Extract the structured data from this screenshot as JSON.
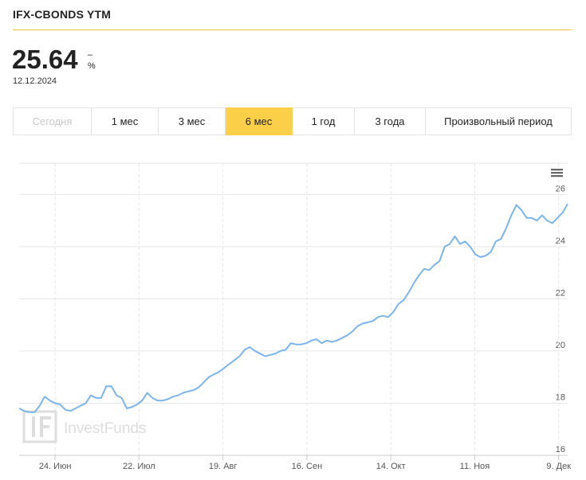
{
  "header": {
    "title": "IFX-CBONDS YTM",
    "value": "25.64",
    "change": "–",
    "unit": "%",
    "date": "12.12.2024"
  },
  "tabs": [
    {
      "label": "Сегодня",
      "state": "disabled"
    },
    {
      "label": "1 мес",
      "state": "normal"
    },
    {
      "label": "3 мес",
      "state": "normal"
    },
    {
      "label": "6 мес",
      "state": "active"
    },
    {
      "label": "1 год",
      "state": "normal"
    },
    {
      "label": "3 года",
      "state": "normal"
    },
    {
      "label": "Произвольный период",
      "state": "normal"
    }
  ],
  "colors": {
    "accent": "#fccf48",
    "title_rule": "#f5c242",
    "series_line": "#7cb5ec"
  },
  "watermark": "InvestFunds",
  "menu_icon": "hamburger-menu-icon",
  "chart_data": {
    "type": "line",
    "series": [
      {
        "values": [
          17.8,
          17.7,
          17.65,
          17.65,
          17.9,
          18.25,
          18.1,
          18.0,
          17.95,
          17.75,
          17.7,
          17.8,
          17.9,
          18.0,
          18.3,
          18.2,
          18.2,
          18.65,
          18.65,
          18.3,
          18.2,
          17.8,
          17.85,
          17.95,
          18.1,
          18.4,
          18.2,
          18.1,
          18.1,
          18.15,
          18.25,
          18.3,
          18.4,
          18.45,
          18.5,
          18.6,
          18.8,
          19.0,
          19.1,
          19.2,
          19.35,
          19.5,
          19.65,
          19.8,
          20.05,
          20.15,
          20.0,
          19.9,
          19.8,
          19.85,
          19.9,
          20.0,
          20.05,
          20.3,
          20.25,
          20.25,
          20.3,
          20.4,
          20.45,
          20.3,
          20.4,
          20.35,
          20.4,
          20.5,
          20.6,
          20.75,
          20.95,
          21.05,
          21.1,
          21.15,
          21.3,
          21.35,
          21.3,
          21.5,
          21.8,
          21.95,
          22.25,
          22.6,
          22.9,
          23.15,
          23.1,
          23.3,
          23.45,
          24.0,
          24.1,
          24.4,
          24.1,
          24.2,
          24.0,
          23.7,
          23.6,
          23.65,
          23.8,
          24.2,
          24.3,
          24.7,
          25.2,
          25.6,
          25.4,
          25.1,
          25.1,
          25.0,
          25.2,
          25.0,
          24.9,
          25.1,
          25.3,
          25.64
        ]
      }
    ],
    "x_start": "2024-06-12",
    "x_end": "2024-12-12",
    "x_ticks": [
      "24. Июн",
      "22. Июл",
      "19. Авг",
      "16. Сен",
      "14. Окт",
      "11. Ноя",
      "9. Дек"
    ],
    "y_ticks": [
      16,
      18,
      20,
      22,
      24,
      26
    ],
    "ylim": [
      16,
      27.2
    ],
    "grid": true,
    "title": "",
    "xlabel": "",
    "ylabel": ""
  }
}
